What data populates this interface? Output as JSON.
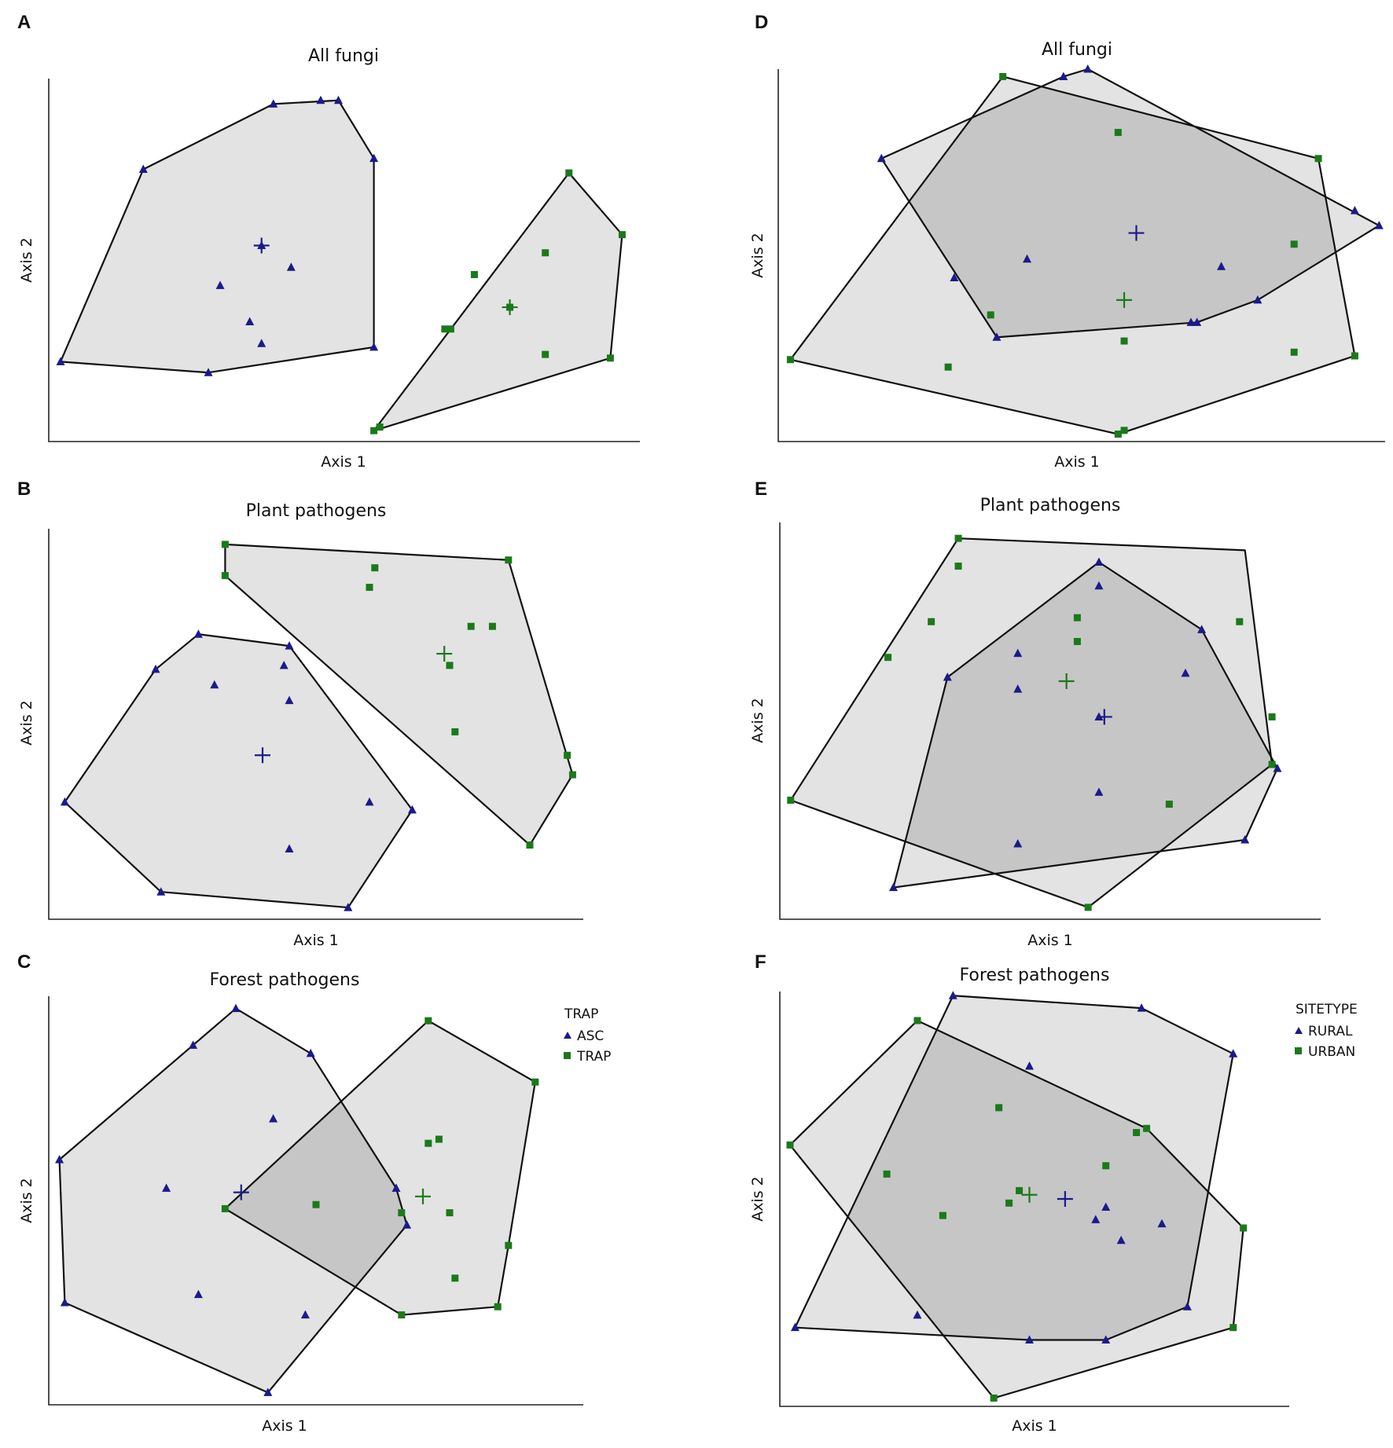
{
  "chart_data": [
    {
      "panel": "A",
      "type": "scatter",
      "title": "All fungi",
      "xlabel": "Axis 1",
      "ylabel": "Axis 2",
      "xlim": [
        0,
        100
      ],
      "ylim": [
        0,
        100
      ],
      "series": [
        {
          "name": "ASC",
          "group": 1,
          "points": [
            [
              38,
              93
            ],
            [
              46,
              94
            ],
            [
              49,
              94
            ],
            [
              55,
              78
            ],
            [
              16,
              75
            ],
            [
              36,
              54
            ],
            [
              29,
              43
            ],
            [
              41,
              48
            ],
            [
              34,
              33
            ],
            [
              36,
              27
            ],
            [
              55,
              26
            ],
            [
              27,
              19
            ],
            [
              2,
              22
            ]
          ],
          "hull": [
            [
              2,
              22
            ],
            [
              16,
              75
            ],
            [
              38,
              93
            ],
            [
              49,
              94
            ],
            [
              55,
              78
            ],
            [
              55,
              26
            ],
            [
              27,
              19
            ]
          ],
          "centroid": [
            36,
            54
          ]
        },
        {
          "name": "TRAP",
          "group": 2,
          "points": [
            [
              88,
              74
            ],
            [
              97,
              57
            ],
            [
              95,
              23
            ],
            [
              84,
              52
            ],
            [
              72,
              46
            ],
            [
              78,
              37
            ],
            [
              68,
              31
            ],
            [
              67,
              31
            ],
            [
              84,
              24
            ],
            [
              55,
              3
            ],
            [
              56,
              4
            ]
          ],
          "hull": [
            [
              55,
              3
            ],
            [
              88,
              74
            ],
            [
              97,
              57
            ],
            [
              95,
              23
            ]
          ],
          "centroid": [
            78,
            37
          ]
        }
      ]
    },
    {
      "panel": "B",
      "type": "scatter",
      "title": "Plant pathogens",
      "xlabel": "Axis 1",
      "ylabel": "Axis 2",
      "xlim": [
        0,
        100
      ],
      "ylim": [
        0,
        100
      ],
      "series": [
        {
          "name": "ASC",
          "group": 1,
          "points": [
            [
              28,
              73
            ],
            [
              20,
              64
            ],
            [
              45,
              70
            ],
            [
              31,
              60
            ],
            [
              44,
              65
            ],
            [
              45,
              56
            ],
            [
              3,
              30
            ],
            [
              68,
              28
            ],
            [
              60,
              30
            ],
            [
              45,
              18
            ],
            [
              21,
              7
            ],
            [
              56,
              3
            ]
          ],
          "hull": [
            [
              3,
              30
            ],
            [
              20,
              64
            ],
            [
              28,
              73
            ],
            [
              45,
              70
            ],
            [
              68,
              28
            ],
            [
              56,
              3
            ],
            [
              21,
              7
            ]
          ],
          "centroid": [
            40,
            42
          ]
        },
        {
          "name": "TRAP",
          "group": 2,
          "points": [
            [
              33,
              96
            ],
            [
              33,
              88
            ],
            [
              60,
              85
            ],
            [
              61,
              90
            ],
            [
              86,
              92
            ],
            [
              79,
              75
            ],
            [
              83,
              75
            ],
            [
              76,
              48
            ],
            [
              97,
              42
            ],
            [
              98,
              37
            ],
            [
              90,
              19
            ],
            [
              75,
              65
            ]
          ],
          "hull": [
            [
              33,
              96
            ],
            [
              86,
              92
            ],
            [
              98,
              37
            ],
            [
              90,
              19
            ],
            [
              33,
              88
            ]
          ],
          "centroid": [
            74,
            68
          ]
        }
      ]
    },
    {
      "panel": "C",
      "type": "scatter",
      "title": "Forest pathogens",
      "xlabel": "Axis 1",
      "ylabel": "Axis 2",
      "xlim": [
        0,
        100
      ],
      "ylim": [
        0,
        100
      ],
      "legend": {
        "title": "TRAP",
        "position": "right",
        "entries": [
          "ASC",
          "TRAP"
        ]
      },
      "series": [
        {
          "name": "ASC",
          "group": 1,
          "points": [
            [
              35,
              97
            ],
            [
              27,
              88
            ],
            [
              49,
              86
            ],
            [
              42,
              70
            ],
            [
              2,
              60
            ],
            [
              22,
              53
            ],
            [
              65,
              53
            ],
            [
              67,
              44
            ],
            [
              28,
              27
            ],
            [
              48,
              22
            ],
            [
              3,
              25
            ],
            [
              41,
              3
            ]
          ],
          "hull": [
            [
              2,
              60
            ],
            [
              35,
              97
            ],
            [
              49,
              86
            ],
            [
              65,
              53
            ],
            [
              67,
              44
            ],
            [
              41,
              3
            ],
            [
              3,
              25
            ]
          ],
          "centroid": [
            36,
            52
          ]
        },
        {
          "name": "TRAP",
          "group": 2,
          "points": [
            [
              71,
              94
            ],
            [
              91,
              79
            ],
            [
              71,
              64
            ],
            [
              73,
              65
            ],
            [
              33,
              48
            ],
            [
              50,
              49
            ],
            [
              66,
              47
            ],
            [
              75,
              47
            ],
            [
              86,
              39
            ],
            [
              76,
              31
            ],
            [
              66,
              22
            ],
            [
              84,
              24
            ]
          ],
          "hull": [
            [
              33,
              48
            ],
            [
              71,
              94
            ],
            [
              91,
              79
            ],
            [
              86,
              39
            ],
            [
              84,
              24
            ],
            [
              66,
              22
            ]
          ],
          "centroid": [
            70,
            51
          ]
        }
      ]
    },
    {
      "panel": "D",
      "type": "scatter",
      "title": "All fungi",
      "xlabel": "Axis 1",
      "ylabel": "Axis 2",
      "xlim": [
        0,
        100
      ],
      "ylim": [
        0,
        100
      ],
      "series": [
        {
          "name": "RURAL",
          "group": 1,
          "points": [
            [
              47,
              98
            ],
            [
              51,
              100
            ],
            [
              17,
              76
            ],
            [
              95,
              62
            ],
            [
              99,
              58
            ],
            [
              29,
              44
            ],
            [
              41,
              49
            ],
            [
              73,
              47
            ],
            [
              79,
              38
            ],
            [
              68,
              32
            ],
            [
              69,
              32
            ],
            [
              36,
              28
            ]
          ],
          "hull": [
            [
              51,
              100
            ],
            [
              99,
              58
            ],
            [
              79,
              38
            ],
            [
              69,
              32
            ],
            [
              36,
              28
            ],
            [
              17,
              76
            ],
            [
              47,
              98
            ]
          ],
          "centroid": [
            59,
            56
          ]
        },
        {
          "name": "TRAP",
          "group": 2,
          "points": [
            [
              37,
              98
            ],
            [
              56,
              83
            ],
            [
              89,
              76
            ],
            [
              85,
              53
            ],
            [
              35,
              34
            ],
            [
              28,
              20
            ],
            [
              57,
              27
            ],
            [
              85,
              24
            ],
            [
              95,
              23
            ],
            [
              2,
              22
            ],
            [
              57,
              3
            ],
            [
              56,
              2
            ]
          ],
          "hull": [
            [
              2,
              22
            ],
            [
              37,
              98
            ],
            [
              89,
              76
            ],
            [
              95,
              23
            ],
            [
              56,
              2
            ]
          ],
          "centroid": [
            57,
            38
          ]
        }
      ]
    },
    {
      "panel": "E",
      "type": "scatter",
      "title": "Plant pathogens",
      "xlabel": "Axis 1",
      "ylabel": "Axis 2",
      "xlim": [
        0,
        100
      ],
      "ylim": [
        0,
        100
      ],
      "series": [
        {
          "name": "RURAL",
          "group": 1,
          "points": [
            [
              59,
              90
            ],
            [
              59,
              84
            ],
            [
              78,
              73
            ],
            [
              31,
              61
            ],
            [
              44,
              67
            ],
            [
              44,
              58
            ],
            [
              75,
              62
            ],
            [
              59,
              51
            ],
            [
              59,
              32
            ],
            [
              44,
              19
            ],
            [
              92,
              38
            ],
            [
              86,
              20
            ],
            [
              21,
              8
            ]
          ],
          "hull": [
            [
              21,
              8
            ],
            [
              31,
              61
            ],
            [
              59,
              90
            ],
            [
              78,
              73
            ],
            [
              92,
              38
            ],
            [
              86,
              20
            ]
          ],
          "centroid": [
            60,
            51
          ]
        },
        {
          "name": "URBAN",
          "group": 2,
          "points": [
            [
              33,
              96
            ],
            [
              33,
              89
            ],
            [
              28,
              75
            ],
            [
              20,
              66
            ],
            [
              55,
              76
            ],
            [
              85,
              75
            ],
            [
              55,
              70
            ],
            [
              91,
              51
            ],
            [
              91,
              39
            ],
            [
              72,
              29
            ],
            [
              2,
              30
            ],
            [
              57,
              3
            ]
          ],
          "hull": [
            [
              33,
              96
            ],
            [
              86,
              93
            ],
            [
              91,
              39
            ],
            [
              57,
              3
            ],
            [
              2,
              30
            ]
          ],
          "centroid": [
            53,
            60
          ]
        }
      ]
    },
    {
      "panel": "F",
      "type": "scatter",
      "title": "Forest pathogens",
      "xlabel": "Axis 1",
      "ylabel": "Axis 2",
      "xlim": [
        0,
        100
      ],
      "ylim": [
        0,
        100
      ],
      "legend": {
        "title": "SITETYPE",
        "position": "right",
        "entries": [
          "RURAL",
          "URBAN"
        ]
      },
      "series": [
        {
          "name": "RURAL",
          "group": 1,
          "points": [
            [
              34,
              99
            ],
            [
              71,
              96
            ],
            [
              89,
              85
            ],
            [
              49,
              82
            ],
            [
              64,
              48
            ],
            [
              62,
              45
            ],
            [
              75,
              44
            ],
            [
              67,
              40
            ],
            [
              80,
              24
            ],
            [
              27,
              22
            ],
            [
              49,
              16
            ],
            [
              64,
              16
            ],
            [
              3,
              19
            ]
          ],
          "hull": [
            [
              3,
              19
            ],
            [
              34,
              99
            ],
            [
              71,
              96
            ],
            [
              89,
              85
            ],
            [
              80,
              24
            ],
            [
              64,
              16
            ],
            [
              49,
              16
            ]
          ],
          "centroid": [
            56,
            50
          ]
        },
        {
          "name": "URBAN",
          "group": 2,
          "points": [
            [
              27,
              93
            ],
            [
              43,
              72
            ],
            [
              70,
              66
            ],
            [
              72,
              67
            ],
            [
              64,
              58
            ],
            [
              21,
              56
            ],
            [
              47,
              52
            ],
            [
              45,
              49
            ],
            [
              32,
              46
            ],
            [
              91,
              43
            ],
            [
              89,
              19
            ],
            [
              42,
              2
            ],
            [
              2,
              63
            ]
          ],
          "hull": [
            [
              27,
              93
            ],
            [
              72,
              67
            ],
            [
              91,
              43
            ],
            [
              89,
              19
            ],
            [
              42,
              2
            ],
            [
              2,
              63
            ]
          ],
          "centroid": [
            49,
            51
          ]
        }
      ]
    }
  ],
  "colors": {
    "group1": "#1a1a8c",
    "group2": "#1a7a1a",
    "hull_fill": "#e3e3e3",
    "overlap_fill": "#c6c6c6",
    "hull_stroke": "#111111"
  },
  "icons": {
    "group1_marker": "triangle-icon",
    "group2_marker": "square-icon",
    "centroid_marker": "plus-icon"
  }
}
